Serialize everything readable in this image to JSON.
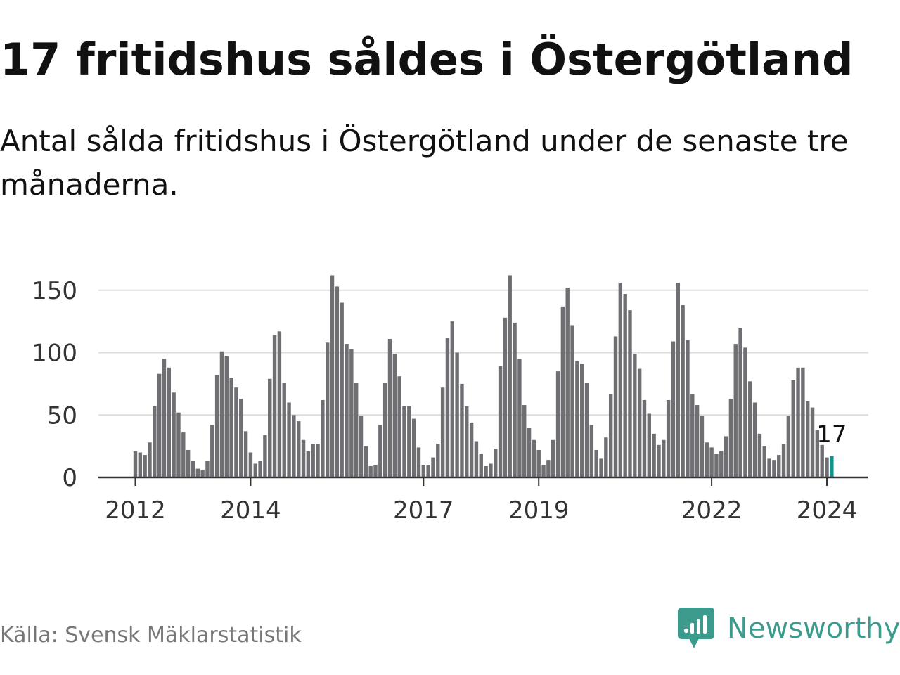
{
  "header": {
    "title": "17 fritidshus såldes i Östergötland",
    "subtitle": "Antal sålda fritidshus i Östergötland under de senaste tre månaderna."
  },
  "footer": {
    "source": "Källa: Svensk Mäklarstatistik",
    "brand_name": "Newsworthy",
    "brand_icon": "newsworthy-logo-icon"
  },
  "colors": {
    "bar": "#6f6e73",
    "highlight": "#13948a",
    "gridline": "#dddddd",
    "axis": "#333333",
    "brand": "#3d9b8d",
    "source_text": "#777777"
  },
  "chart_data": {
    "type": "bar",
    "title": "17 fritidshus såldes i Östergötland",
    "xlabel": "",
    "ylabel": "",
    "ylim": [
      0,
      150
    ],
    "yticks": [
      0,
      50,
      100,
      150
    ],
    "xtick_labels": [
      "2012",
      "2014",
      "2017",
      "2019",
      "2022",
      "2024"
    ],
    "xtick_indices": [
      0,
      24,
      60,
      84,
      120,
      144
    ],
    "grid": true,
    "highlight_label": "17",
    "highlight_index": 145,
    "series": [
      {
        "name": "Antal sålda fritidshus",
        "values": [
          21,
          20,
          18,
          28,
          57,
          83,
          95,
          88,
          68,
          52,
          36,
          22,
          13,
          7,
          6,
          13,
          42,
          82,
          101,
          97,
          80,
          72,
          63,
          37,
          20,
          11,
          13,
          34,
          79,
          114,
          117,
          76,
          60,
          50,
          45,
          30,
          21,
          27,
          27,
          62,
          108,
          162,
          153,
          140,
          107,
          103,
          76,
          49,
          25,
          9,
          10,
          42,
          76,
          111,
          99,
          81,
          57,
          57,
          47,
          24,
          10,
          10,
          16,
          27,
          72,
          112,
          125,
          100,
          75,
          57,
          44,
          29,
          19,
          9,
          11,
          23,
          89,
          128,
          162,
          124,
          95,
          58,
          40,
          30,
          22,
          10,
          14,
          30,
          85,
          137,
          152,
          122,
          93,
          91,
          76,
          42,
          22,
          15,
          32,
          67,
          113,
          156,
          147,
          134,
          99,
          87,
          62,
          51,
          35,
          26,
          30,
          62,
          109,
          156,
          138,
          110,
          67,
          58,
          49,
          28,
          24,
          19,
          21,
          33,
          63,
          107,
          120,
          104,
          77,
          60,
          35,
          25,
          15,
          14,
          18,
          27,
          49,
          78,
          88,
          88,
          61,
          56,
          38,
          26,
          16,
          17
        ]
      }
    ]
  }
}
